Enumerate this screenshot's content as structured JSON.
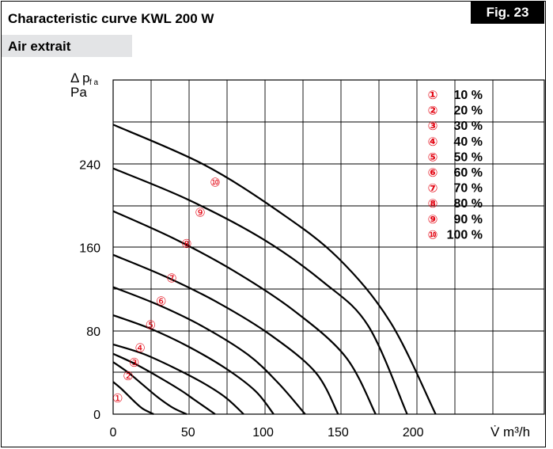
{
  "header": {
    "title": "Characteristic curve KWL 200 W",
    "fig_label": "Fig. 23",
    "subtitle": "Air extrait"
  },
  "colors": {
    "curve_stroke": "#000000",
    "marker": "#e30613",
    "grid": "#000000",
    "subtitle_band": "#e3e4e6"
  },
  "chart_data": {
    "type": "line",
    "title": "Characteristic curve KWL 200 W",
    "xlabel": "V̇ m³/h",
    "ylabel_line1": "Δ p",
    "ylabel_sub": "f a",
    "ylabel_line2": "Pa",
    "xlim": [
      0,
      288
    ],
    "ylim": [
      0,
      296
    ],
    "x_ticks": [
      0,
      50,
      100,
      150,
      200
    ],
    "y_ticks": [
      0,
      80,
      160,
      240
    ],
    "grid": true,
    "legend_placement": "top-right",
    "series": [
      {
        "name": "10 %",
        "marker": "①",
        "points": [
          [
            0,
            31
          ],
          [
            5,
            25
          ],
          [
            10,
            18
          ],
          [
            15,
            11
          ],
          [
            20,
            5
          ],
          [
            27,
            0
          ]
        ],
        "marker_at": [
          3,
          15
        ]
      },
      {
        "name": "20 %",
        "marker": "②",
        "points": [
          [
            0,
            50
          ],
          [
            10,
            40
          ],
          [
            20,
            28
          ],
          [
            30,
            16
          ],
          [
            40,
            6
          ],
          [
            49,
            0
          ]
        ],
        "marker_at": [
          10,
          36
        ]
      },
      {
        "name": "30 %",
        "marker": "③",
        "points": [
          [
            0,
            58
          ],
          [
            15,
            48
          ],
          [
            30,
            36
          ],
          [
            45,
            23
          ],
          [
            55,
            13
          ],
          [
            68,
            0
          ]
        ],
        "marker_at": [
          14,
          49
        ]
      },
      {
        "name": "40 %",
        "marker": "④",
        "points": [
          [
            0,
            67
          ],
          [
            20,
            58
          ],
          [
            40,
            45
          ],
          [
            60,
            30
          ],
          [
            75,
            16
          ],
          [
            87,
            0
          ]
        ],
        "marker_at": [
          18,
          63
        ]
      },
      {
        "name": "50 %",
        "marker": "⑤",
        "points": [
          [
            0,
            95
          ],
          [
            25,
            82
          ],
          [
            50,
            65
          ],
          [
            75,
            44
          ],
          [
            95,
            22
          ],
          [
            107,
            0
          ]
        ],
        "marker_at": [
          25,
          85
        ]
      },
      {
        "name": "60 %",
        "marker": "⑥",
        "points": [
          [
            0,
            122
          ],
          [
            30,
            105
          ],
          [
            60,
            84
          ],
          [
            90,
            57
          ],
          [
            110,
            30
          ],
          [
            128,
            0
          ]
        ],
        "marker_at": [
          32,
          108
        ]
      },
      {
        "name": "70 %",
        "marker": "⑦",
        "points": [
          [
            0,
            153
          ],
          [
            35,
            132
          ],
          [
            70,
            107
          ],
          [
            105,
            76
          ],
          [
            135,
            40
          ],
          [
            150,
            0
          ]
        ],
        "marker_at": [
          39,
          130
        ]
      },
      {
        "name": "80 %",
        "marker": "⑧",
        "points": [
          [
            0,
            195
          ],
          [
            40,
            169
          ],
          [
            80,
            138
          ],
          [
            120,
            100
          ],
          [
            155,
            55
          ],
          [
            175,
            0
          ]
        ],
        "marker_at": [
          49,
          163
        ]
      },
      {
        "name": "90 %",
        "marker": "⑨",
        "points": [
          [
            0,
            236
          ],
          [
            50,
            206
          ],
          [
            100,
            168
          ],
          [
            140,
            127
          ],
          [
            170,
            85
          ],
          [
            196,
            0
          ]
        ],
        "marker_at": [
          58,
          193
        ]
      },
      {
        "name": "100 %",
        "marker": "⑩",
        "points": [
          [
            0,
            278
          ],
          [
            60,
            240
          ],
          [
            110,
            195
          ],
          [
            150,
            150
          ],
          [
            185,
            88
          ],
          [
            215,
            0
          ]
        ],
        "marker_at": [
          68,
          222
        ]
      }
    ]
  }
}
